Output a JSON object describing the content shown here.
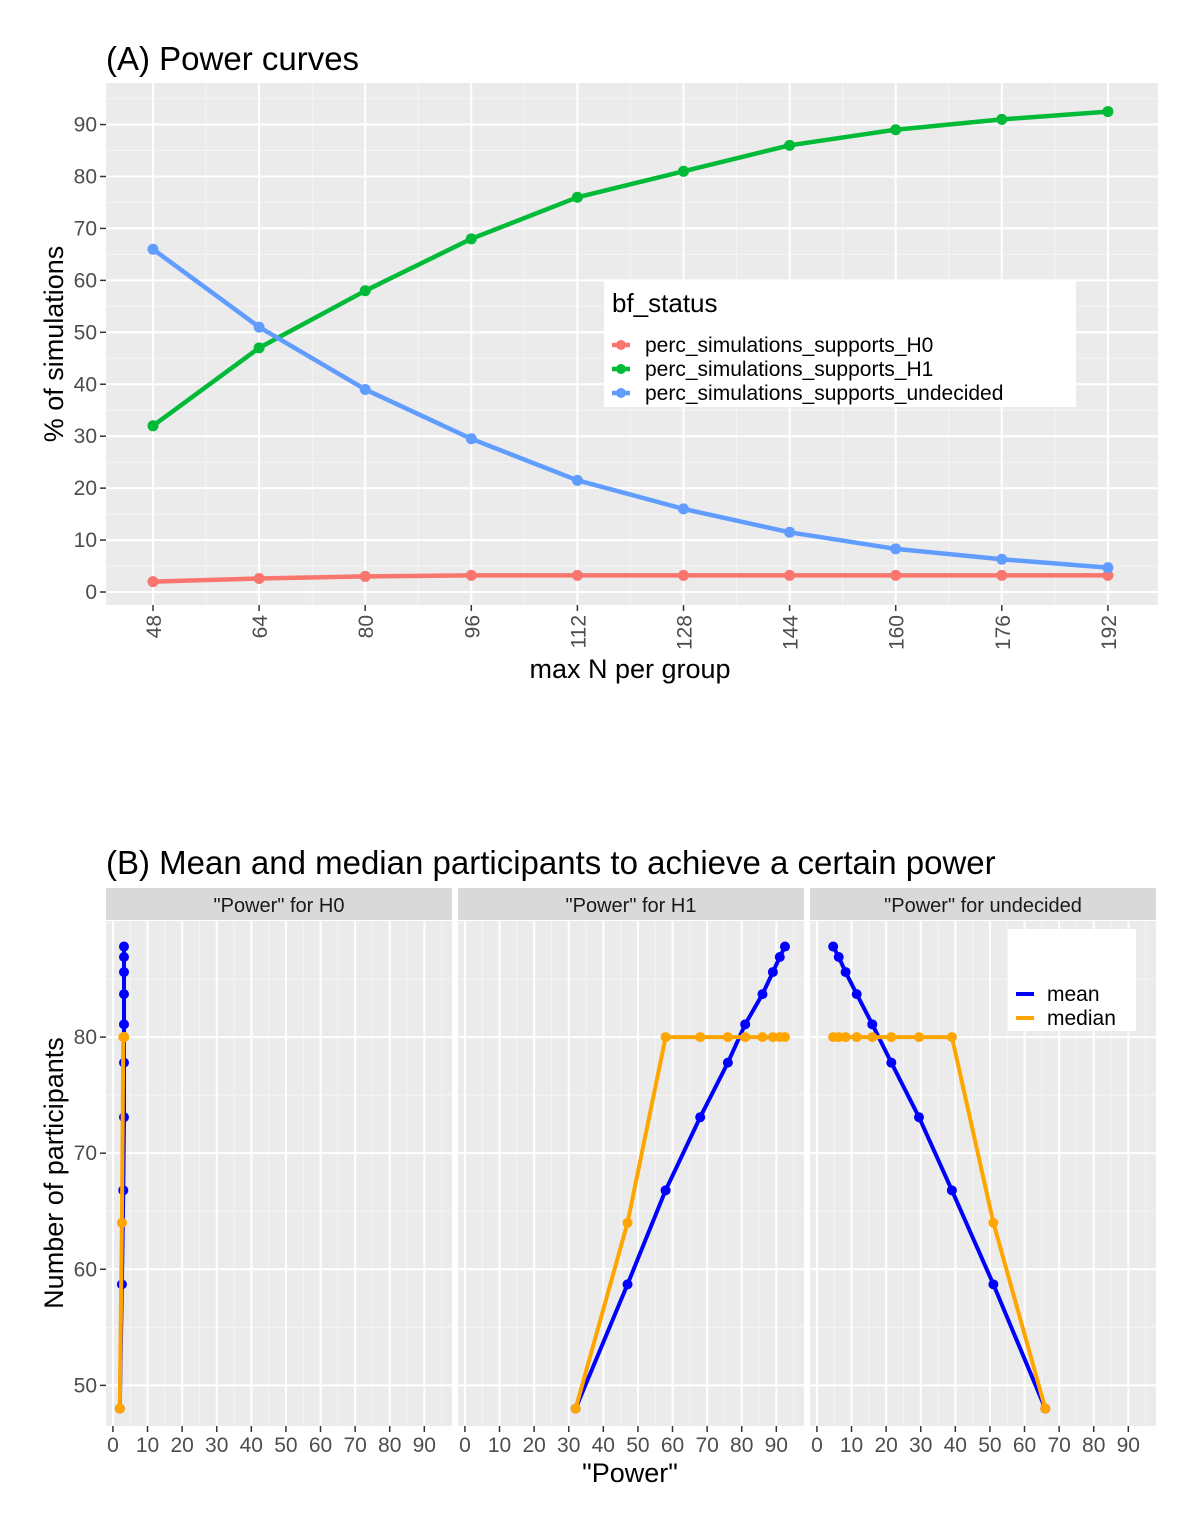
{
  "chart_data": [
    {
      "type": "line",
      "title": "(A) Power curves",
      "xlabel": "max N per group",
      "ylabel": "% of simulations",
      "x": [
        48,
        64,
        80,
        96,
        112,
        128,
        144,
        160,
        176,
        192
      ],
      "x_tick_labels": [
        "48",
        "64",
        "80",
        "96",
        "112",
        "128",
        "144",
        "160",
        "176",
        "192"
      ],
      "y_ticks": [
        0,
        10,
        20,
        30,
        40,
        50,
        60,
        70,
        80,
        90
      ],
      "ylim": [
        -2.5,
        98
      ],
      "grid": true,
      "legend": {
        "title": "bf_status",
        "placement": "right"
      },
      "series": [
        {
          "name": "perc_simulations_supports_H0",
          "color": "#F8766D",
          "values": [
            2,
            2.6,
            3,
            3.2,
            3.2,
            3.2,
            3.2,
            3.2,
            3.2,
            3.2
          ]
        },
        {
          "name": "perc_simulations_supports_H1",
          "color": "#00BA38",
          "values": [
            32,
            47,
            58,
            68,
            76,
            81,
            86,
            89,
            91,
            92.5
          ]
        },
        {
          "name": "perc_simulations_supports_undecided",
          "color": "#619CFF",
          "values": [
            66,
            51,
            39,
            29.5,
            21.5,
            16,
            11.5,
            8.3,
            6.3,
            4.7
          ]
        }
      ]
    },
    {
      "type": "line",
      "title": "(B) Mean and median participants to achieve a certain power",
      "xlabel": "\"Power\"",
      "ylabel": "Number of participants",
      "x_ticks": [
        0,
        10,
        20,
        30,
        40,
        50,
        60,
        70,
        80,
        90
      ],
      "y_ticks": [
        50,
        60,
        70,
        80
      ],
      "xlim": [
        -2,
        98
      ],
      "ylim": [
        46.5,
        90
      ],
      "grid": true,
      "legend": {
        "title": "",
        "placement": "right"
      },
      "series_names": [
        "mean",
        "median"
      ],
      "series_colors": {
        "mean": "#0000FF",
        "median": "#FFA500"
      },
      "panels": [
        {
          "label": "\"Power\" for H0",
          "series": [
            {
              "name": "mean",
              "x": [
                2,
                2.6,
                3,
                3.2,
                3.2,
                3.2,
                3.2,
                3.2,
                3.2,
                3.2
              ],
              "y": [
                48,
                58.7,
                66.8,
                73.1,
                77.8,
                81.1,
                83.7,
                85.6,
                86.9,
                87.8
              ]
            },
            {
              "name": "median",
              "x": [
                2,
                2.6,
                3,
                3.2,
                3.2,
                3.2,
                3.2,
                3.2,
                3.2,
                3.2
              ],
              "y": [
                48,
                64,
                80,
                80,
                80,
                80,
                80,
                80,
                80,
                80
              ]
            }
          ]
        },
        {
          "label": "\"Power\" for H1",
          "series": [
            {
              "name": "mean",
              "x": [
                32,
                47,
                58,
                68,
                76,
                81,
                86,
                89,
                91,
                92.5
              ],
              "y": [
                48,
                58.7,
                66.8,
                73.1,
                77.8,
                81.1,
                83.7,
                85.6,
                86.9,
                87.8
              ]
            },
            {
              "name": "median",
              "x": [
                32,
                47,
                58,
                68,
                76,
                81,
                86,
                89,
                91,
                92.5
              ],
              "y": [
                48,
                64,
                80,
                80,
                80,
                80,
                80,
                80,
                80,
                80
              ]
            }
          ]
        },
        {
          "label": "\"Power\" for undecided",
          "series": [
            {
              "name": "mean",
              "x": [
                66,
                51,
                39,
                29.5,
                21.5,
                16,
                11.5,
                8.3,
                6.3,
                4.7
              ],
              "y": [
                48,
                58.7,
                66.8,
                73.1,
                77.8,
                81.1,
                83.7,
                85.6,
                86.9,
                87.8
              ]
            },
            {
              "name": "median",
              "x": [
                66,
                51,
                39,
                29.5,
                21.5,
                16,
                11.5,
                8.3,
                6.3,
                4.7
              ],
              "y": [
                48,
                64,
                80,
                80,
                80,
                80,
                80,
                80,
                80,
                80
              ]
            }
          ]
        }
      ]
    }
  ]
}
